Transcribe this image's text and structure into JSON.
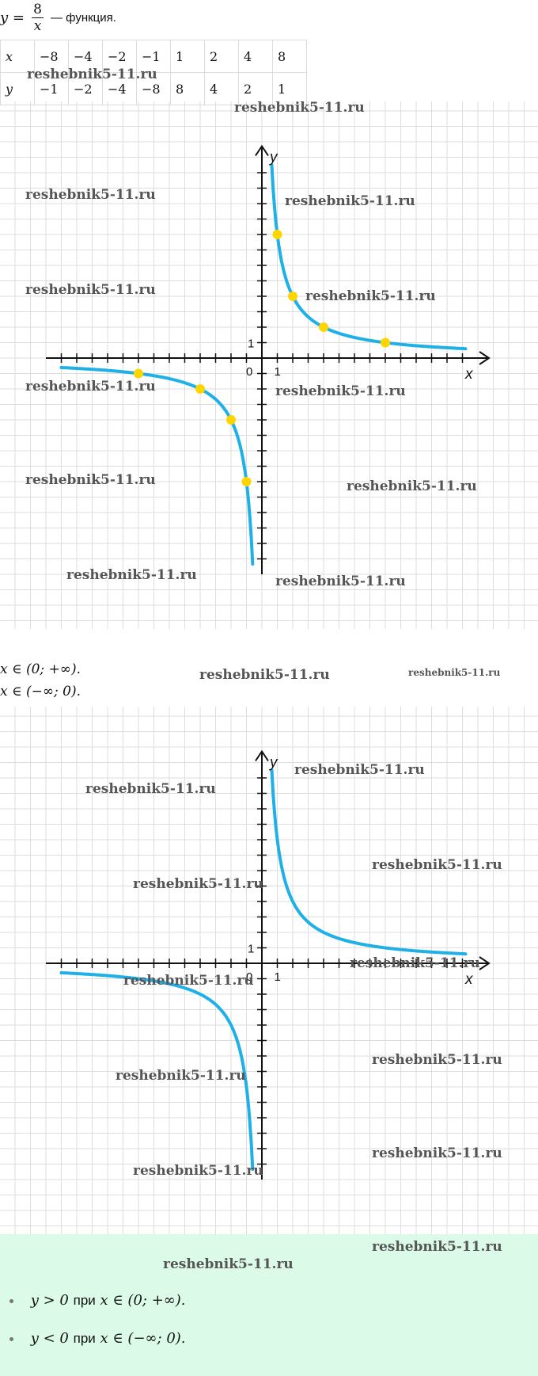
{
  "formula": {
    "lhs": "y =",
    "numerator": "8",
    "denominator": "x",
    "after": "— функция."
  },
  "table": {
    "rows": [
      {
        "label": "x",
        "cells": [
          "−8",
          "−4",
          "−2",
          "−1",
          "1",
          "2",
          "4",
          "8"
        ]
      },
      {
        "label": "y",
        "cells": [
          "−1",
          "−2",
          "−4",
          "−8",
          "8",
          "4",
          "2",
          "1"
        ]
      }
    ]
  },
  "graph1": {
    "y_axis_label": "y",
    "x_axis_label": "x",
    "origin_label": "0",
    "unit_x_label": "1",
    "unit_y_label": "1"
  },
  "statements": {
    "line1": "x ∈ (0; +∞).",
    "line2": "x ∈ (−∞; 0)."
  },
  "graph2": {
    "y_axis_label": "y",
    "x_axis_label": "x",
    "origin_label": "0",
    "unit_x_label": "1",
    "unit_y_label": "1"
  },
  "note": {
    "items": [
      {
        "lhs": "y > 0",
        "pri": "при",
        "rhs": "x ∈ (0; +∞)."
      },
      {
        "lhs": "y < 0",
        "pri": "при",
        "rhs": "x ∈ (−∞; 0)."
      }
    ]
  },
  "watermark": "reshebnik5-11.ru",
  "colors": {
    "curve": "#1fb0e8",
    "points": "#ffd500",
    "grid": "#dddddd",
    "note_bg": "#dbfbe8"
  },
  "chart_data": [
    {
      "type": "line",
      "function": "y = 8/x",
      "series": [
        {
          "x": [
            -8,
            -4,
            -2,
            -1,
            1,
            2,
            4,
            8
          ],
          "y": [
            -1,
            -2,
            -4,
            -8,
            8,
            4,
            2,
            1
          ]
        }
      ],
      "points_marked": true,
      "xlim": [
        -14,
        14
      ],
      "ylim": [
        -14,
        13
      ],
      "grid": true
    },
    {
      "type": "line",
      "function": "y = 8/x",
      "points_marked": false,
      "xlim": [
        -14,
        14
      ],
      "ylim": [
        -14,
        13
      ],
      "grid": true
    }
  ]
}
